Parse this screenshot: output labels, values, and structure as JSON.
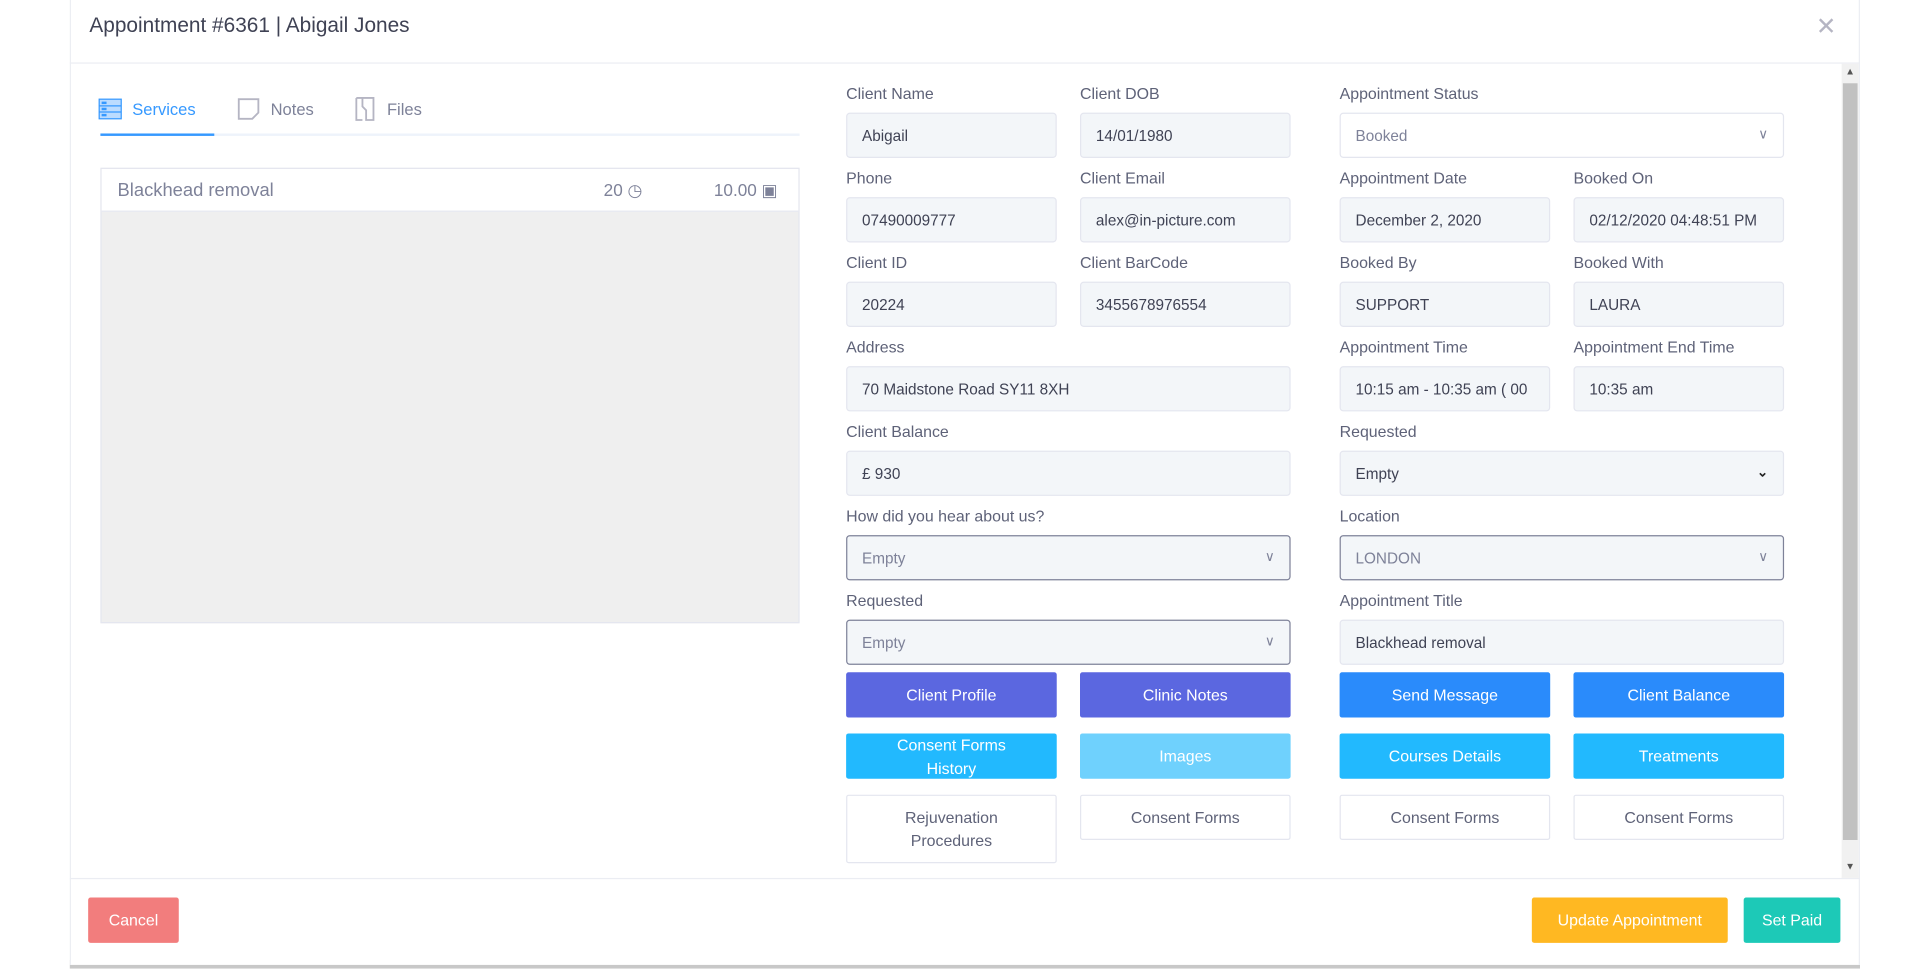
{
  "header": {
    "title": "Appointment #6361 | Abigail Jones",
    "close_icon": "close-icon"
  },
  "tabs": [
    {
      "label": "Services",
      "icon": "server-icon",
      "active": true
    },
    {
      "label": "Notes",
      "icon": "note-icon"
    },
    {
      "label": "Files",
      "icon": "file-icon"
    }
  ],
  "services": [
    {
      "name": "Blackhead removal",
      "duration": "20",
      "price": "10.00"
    }
  ],
  "form": {
    "client_name": {
      "label": "Client Name",
      "value": "Abigail"
    },
    "client_dob": {
      "label": "Client DOB",
      "value": "14/01/1980"
    },
    "appointment_status": {
      "label": "Appointment Status",
      "value": "Booked"
    },
    "phone": {
      "label": "Phone",
      "value": "07490009777"
    },
    "client_email": {
      "label": "Client Email",
      "value": "alex@in-picture.com"
    },
    "appointment_date": {
      "label": "Appointment Date",
      "value": "December 2, 2020"
    },
    "booked_on": {
      "label": "Booked On",
      "value": "02/12/2020 04:48:51 PM"
    },
    "client_id": {
      "label": "Client ID",
      "value": "20224"
    },
    "client_barcode": {
      "label": "Client BarCode",
      "value": "3455678976554"
    },
    "booked_by": {
      "label": "Booked By",
      "value": "SUPPORT"
    },
    "booked_with": {
      "label": "Booked With",
      "value": "LAURA"
    },
    "address": {
      "label": "Address",
      "value": "70  Maidstone Road SY11 8XH"
    },
    "appointment_time": {
      "label": "Appointment Time",
      "value": "10:15 am - 10:35 am ( 00"
    },
    "appointment_end_time": {
      "label": "Appointment End Time",
      "value": "10:35 am"
    },
    "client_balance": {
      "label": "Client Balance",
      "value": "£ 930"
    },
    "requested_right": {
      "label": "Requested",
      "value": "Empty"
    },
    "hear_about": {
      "label": "How did you hear about us?",
      "value": "Empty"
    },
    "location": {
      "label": "Location",
      "value": "LONDON"
    },
    "requested_left": {
      "label": "Requested",
      "value": "Empty"
    },
    "appointment_title": {
      "label": "Appointment Title",
      "value": "Blackhead removal"
    }
  },
  "buttons": {
    "client_profile": "Client Profile",
    "clinic_notes": "Clinic Notes",
    "send_message": "Send Message",
    "client_balance": "Client Balance",
    "consent_history": "Consent Forms History",
    "images": "Images",
    "courses_details": "Courses Details",
    "treatments": "Treatments",
    "rejuvenation": "Rejuvenation Procedures",
    "consent_forms_1": "Consent Forms",
    "consent_forms_2": "Consent Forms",
    "consent_forms_3": "Consent Forms"
  },
  "footer": {
    "cancel": "Cancel",
    "update": "Update Appointment",
    "set_paid": "Set Paid"
  },
  "colors": {
    "primary": "#3699ff",
    "indigo": "#5b67e0",
    "blue": "#2a8bfb",
    "cyan": "#22b9fe",
    "cyan_light": "#6fd1fd",
    "cancel": "#f27d7d",
    "update": "#ffb822",
    "set_paid": "#1dc9b7"
  }
}
